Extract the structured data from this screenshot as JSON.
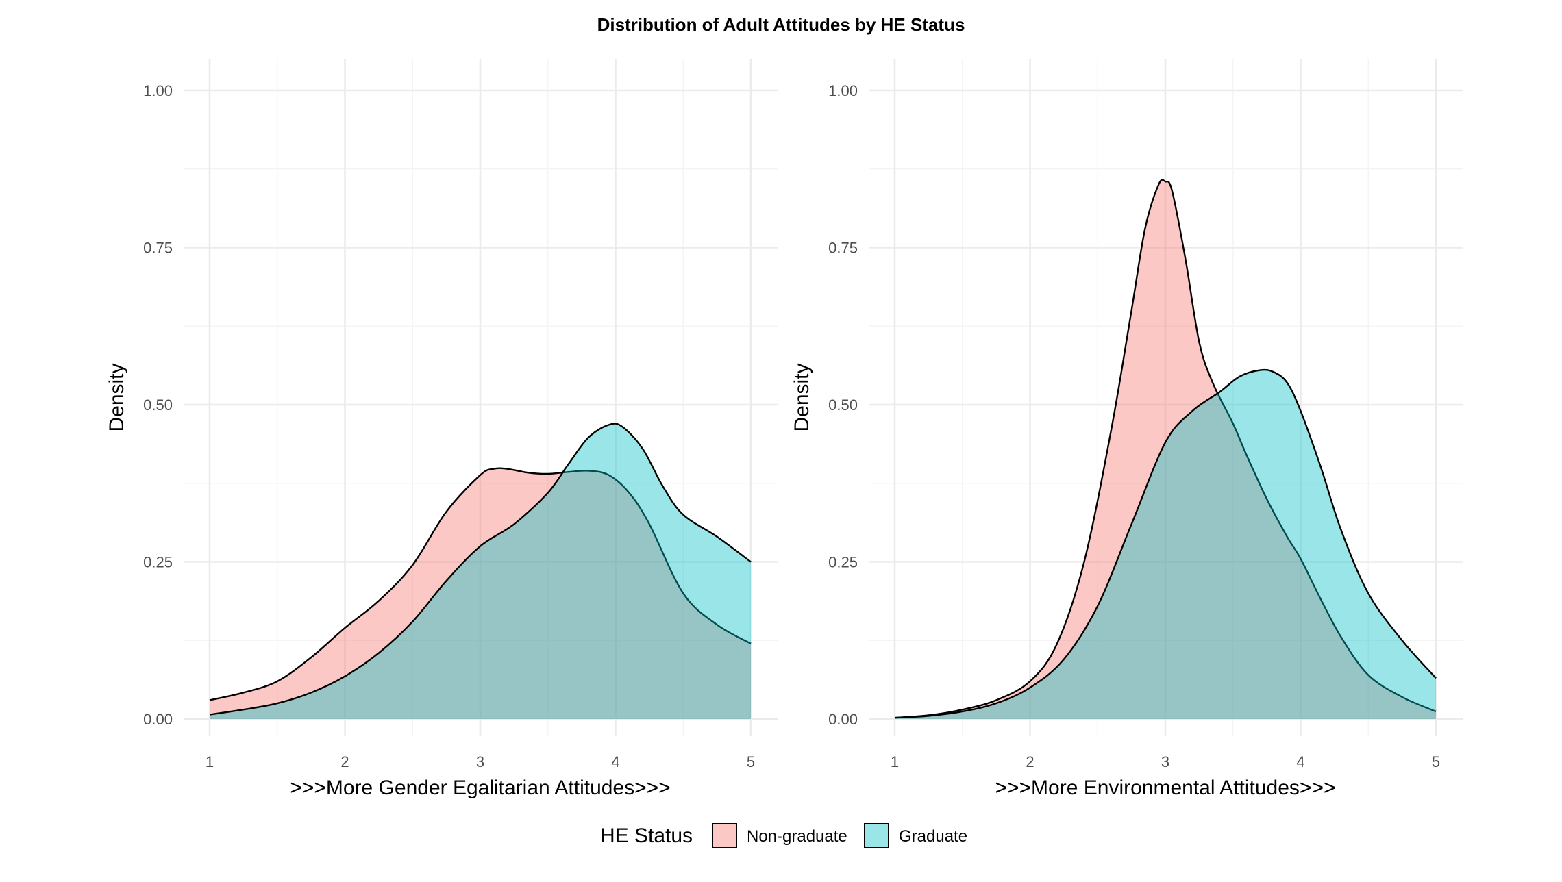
{
  "title": "Distribution of Adult Attitudes by HE Status",
  "legend": {
    "title": "HE Status",
    "position": "bottom",
    "items": [
      {
        "label": "Non-graduate",
        "color": "#F8766D"
      },
      {
        "label": "Graduate",
        "color": "#00BFC4"
      }
    ]
  },
  "chart_data": [
    {
      "type": "area",
      "xlabel": ">>>More Gender Egalitarian Attitudes>>>",
      "ylabel": "Density",
      "xlim": [
        1,
        5
      ],
      "ylim": [
        0,
        1
      ],
      "x_ticks": [
        "1",
        "2",
        "3",
        "4",
        "5"
      ],
      "y_ticks": [
        "0.00",
        "0.25",
        "0.50",
        "0.75",
        "1.00"
      ],
      "grid": true,
      "series": [
        {
          "name": "Non-graduate",
          "color": "#F8766D",
          "x": [
            1,
            1.25,
            1.5,
            1.75,
            2,
            2.25,
            2.5,
            2.75,
            3,
            3.1,
            3.2,
            3.35,
            3.5,
            3.65,
            3.8,
            3.95,
            4.1,
            4.25,
            4.5,
            4.75,
            5
          ],
          "y": [
            0.03,
            0.042,
            0.06,
            0.098,
            0.145,
            0.188,
            0.245,
            0.33,
            0.388,
            0.398,
            0.398,
            0.392,
            0.39,
            0.393,
            0.395,
            0.388,
            0.36,
            0.31,
            0.2,
            0.15,
            0.12
          ]
        },
        {
          "name": "Graduate",
          "color": "#00BFC4",
          "x": [
            1,
            1.25,
            1.5,
            1.75,
            2,
            2.25,
            2.5,
            2.75,
            3,
            3.25,
            3.5,
            3.65,
            3.8,
            3.95,
            4.05,
            4.2,
            4.35,
            4.5,
            4.75,
            5
          ],
          "y": [
            0.007,
            0.015,
            0.025,
            0.042,
            0.068,
            0.105,
            0.155,
            0.22,
            0.275,
            0.31,
            0.36,
            0.405,
            0.448,
            0.468,
            0.465,
            0.43,
            0.37,
            0.325,
            0.29,
            0.25
          ]
        }
      ]
    },
    {
      "type": "area",
      "xlabel": ">>>More Environmental Attitudes>>>",
      "ylabel": "Density",
      "xlim": [
        1,
        5
      ],
      "ylim": [
        0,
        1
      ],
      "x_ticks": [
        "1",
        "2",
        "3",
        "4",
        "5"
      ],
      "y_ticks": [
        "0.00",
        "0.25",
        "0.50",
        "0.75",
        "1.00"
      ],
      "grid": true,
      "series": [
        {
          "name": "Non-graduate",
          "color": "#F8766D",
          "x": [
            1,
            1.25,
            1.5,
            1.75,
            2,
            2.2,
            2.4,
            2.6,
            2.75,
            2.85,
            2.95,
            3,
            3.05,
            3.15,
            3.25,
            3.35,
            3.5,
            3.6,
            3.75,
            3.9,
            4,
            4.15,
            4.3,
            4.5,
            4.75,
            5
          ],
          "y": [
            0.002,
            0.006,
            0.015,
            0.03,
            0.06,
            0.12,
            0.25,
            0.46,
            0.65,
            0.78,
            0.85,
            0.855,
            0.84,
            0.73,
            0.6,
            0.535,
            0.47,
            0.42,
            0.35,
            0.29,
            0.255,
            0.19,
            0.13,
            0.07,
            0.035,
            0.012
          ]
        },
        {
          "name": "Graduate",
          "color": "#00BFC4",
          "x": [
            1,
            1.25,
            1.5,
            1.75,
            2,
            2.25,
            2.5,
            2.75,
            3,
            3.2,
            3.4,
            3.55,
            3.7,
            3.8,
            3.9,
            4,
            4.15,
            4.3,
            4.5,
            4.75,
            5
          ],
          "y": [
            0.002,
            0.005,
            0.012,
            0.025,
            0.05,
            0.095,
            0.18,
            0.31,
            0.44,
            0.49,
            0.52,
            0.545,
            0.555,
            0.552,
            0.535,
            0.49,
            0.4,
            0.3,
            0.2,
            0.125,
            0.065
          ]
        }
      ]
    }
  ]
}
